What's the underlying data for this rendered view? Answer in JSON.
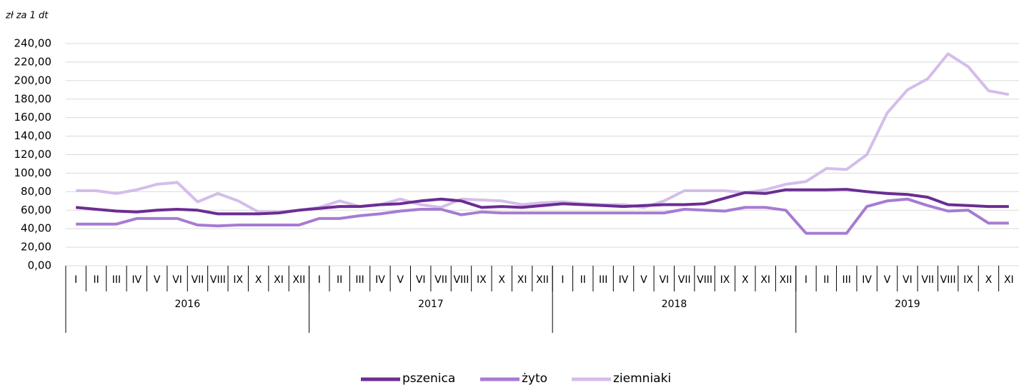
{
  "chart_data": {
    "type": "line",
    "unit_label": "zł za 1 dt",
    "categories": [
      "I",
      "II",
      "III",
      "IV",
      "V",
      "VI",
      "VII",
      "VIII",
      "IX",
      "X",
      "XI",
      "XII",
      "I",
      "II",
      "III",
      "IV",
      "V",
      "VI",
      "VII",
      "VIII",
      "IX",
      "X",
      "XI",
      "XII",
      "I",
      "II",
      "III",
      "IV",
      "V",
      "VI",
      "VII",
      "VIII",
      "IX",
      "X",
      "XI",
      "XII",
      "I",
      "II",
      "III",
      "IV",
      "V",
      "VI",
      "VII",
      "VIII",
      "IX",
      "X",
      "XI"
    ],
    "groups": [
      {
        "name": "2016",
        "count": 12
      },
      {
        "name": "2017",
        "count": 12
      },
      {
        "name": "2018",
        "count": 12
      },
      {
        "name": "2019",
        "count": 11
      }
    ],
    "series": [
      {
        "name": "pszenica",
        "color": "#6b2d92",
        "values": [
          63,
          61,
          59,
          58,
          60,
          61,
          60,
          56,
          56,
          56,
          57,
          60,
          62,
          64,
          64,
          66,
          67,
          70,
          72,
          70,
          63,
          64,
          63,
          65,
          67,
          66,
          65,
          64,
          65,
          66,
          66,
          67,
          73,
          79,
          78,
          82,
          82,
          82,
          82.5,
          80,
          78,
          77,
          74,
          66,
          65,
          64,
          64
        ]
      },
      {
        "name": "żyto",
        "color": "#a67bd3",
        "values": [
          45,
          45,
          45,
          51,
          51,
          51,
          44,
          43,
          44,
          44,
          44,
          44,
          51,
          51,
          54,
          56,
          59,
          61,
          61,
          55,
          58,
          57,
          57,
          57,
          57,
          57,
          57,
          57,
          57,
          57,
          61,
          60,
          59,
          63,
          63,
          60,
          35,
          35,
          35,
          64,
          70,
          72,
          65,
          59,
          60,
          46,
          46
        ]
      },
      {
        "name": "ziemniaki",
        "color": "#d4bdeb",
        "values": [
          81,
          81,
          78,
          82,
          88,
          90,
          69,
          78,
          70,
          58,
          58,
          60,
          63,
          70,
          64,
          66,
          72,
          66,
          63,
          72,
          71,
          70,
          66,
          68,
          69,
          67,
          66,
          66,
          63,
          70,
          81,
          81,
          81,
          79,
          82,
          88,
          91,
          105,
          104,
          120,
          165,
          190,
          202,
          229,
          215,
          189,
          185
        ]
      }
    ],
    "ylim": [
      0,
      240
    ],
    "yticks": [
      {
        "value": 0,
        "label": "0,00"
      },
      {
        "value": 20,
        "label": "20,00"
      },
      {
        "value": 40,
        "label": "40,00"
      },
      {
        "value": 60,
        "label": "60,00"
      },
      {
        "value": 80,
        "label": "80,00"
      },
      {
        "value": 100,
        "label": "100,00"
      },
      {
        "value": 120,
        "label": "120,00"
      },
      {
        "value": 140,
        "label": "140,00"
      },
      {
        "value": 160,
        "label": "160,00"
      },
      {
        "value": 180,
        "label": "180,00"
      },
      {
        "value": 200,
        "label": "200,00"
      },
      {
        "value": 220,
        "label": "220,00"
      },
      {
        "value": 240,
        "label": "240,00"
      }
    ],
    "grid": true
  }
}
